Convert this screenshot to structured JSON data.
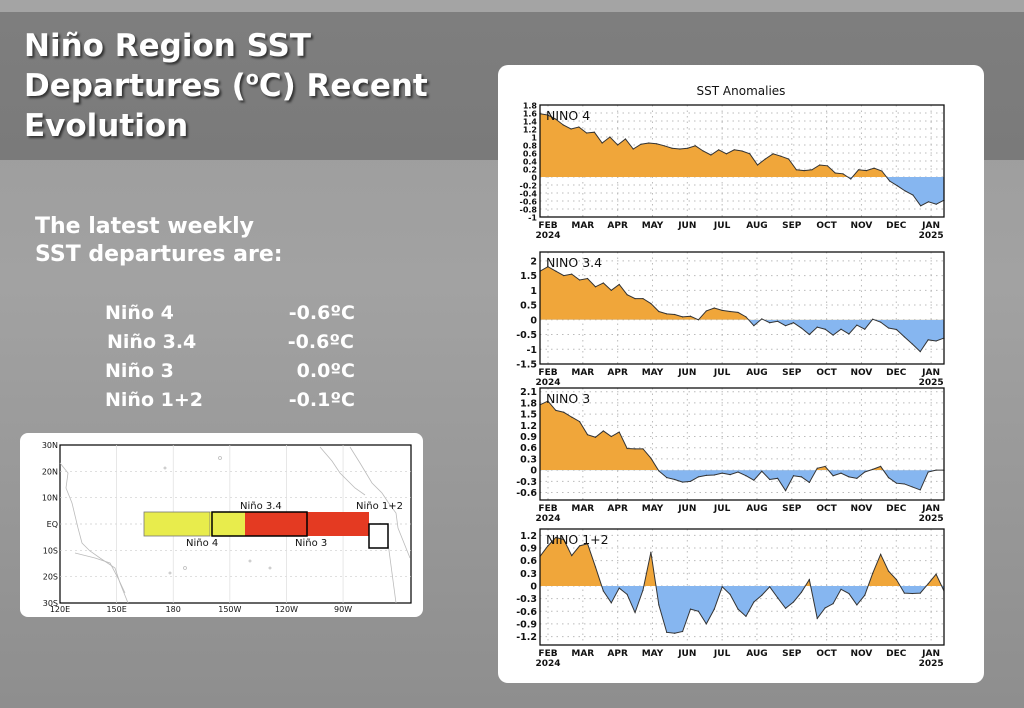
{
  "slide": {
    "title": "Niño Region SST Departures (oC) Recent Evolution",
    "title_lines": [
      "Niño Region SST",
      "Departures (",
      "o",
      "C) Recent",
      "Evolution"
    ],
    "subtitle_line1": "The latest weekly",
    "subtitle_line2": "SST departures are:",
    "latest": [
      {
        "region": "Niño 4",
        "value": "-0.6ºC"
      },
      {
        "region": "Niño 3.4",
        "value": "-0.6ºC"
      },
      {
        "region": "Niño 3",
        "value": "0.0ºC"
      },
      {
        "region": "Niño 1+2",
        "value": "-0.1ºC"
      }
    ]
  },
  "map": {
    "lat_labels": [
      "30N",
      "20N",
      "10N",
      "EQ",
      "10S",
      "20S",
      "30S"
    ],
    "lon_labels": [
      "120E",
      "150E",
      "180",
      "150W",
      "120W",
      "90W"
    ],
    "regions": [
      {
        "name": "Niño 4",
        "color": "#e8ec4c"
      },
      {
        "name": "Niño 3.4",
        "color": "#e8ec4c"
      },
      {
        "name": "Niño 3",
        "color": "#e43a22"
      },
      {
        "name": "Niño 1+2",
        "color": "#ffffff"
      }
    ]
  },
  "colors": {
    "positive": "#f0a63a",
    "negative": "#86b6f0"
  },
  "chart_data": [
    {
      "type": "area",
      "title": "SST Anomalies",
      "panel_label": "NINO  4",
      "xlabel": "",
      "ylabel": "",
      "x_tick_labels": [
        "FEB",
        "MAR",
        "APR",
        "MAY",
        "JUN",
        "JUL",
        "AUG",
        "SEP",
        "OCT",
        "NOV",
        "DEC",
        "JAN"
      ],
      "x_year_labels": [
        "2024",
        "2025"
      ],
      "ylim": [
        -1,
        1.8
      ],
      "y_ticks": [
        -1,
        -0.8,
        -0.6,
        -0.4,
        -0.2,
        0,
        0.2,
        0.4,
        0.6,
        0.8,
        1,
        1.2,
        1.4,
        1.6,
        1.8
      ],
      "y_tick_labels": [
        "-1",
        "-0.8",
        "-0.6",
        "-0.4",
        "-0.2",
        "0",
        "0.2",
        "0.4",
        "0.6",
        "0.8",
        "1",
        "1.2",
        "1.4",
        "1.6",
        "1.8"
      ],
      "grid": true,
      "values": [
        1.58,
        1.55,
        1.45,
        1.3,
        1.2,
        1.25,
        1.1,
        1.12,
        0.85,
        1.0,
        0.8,
        0.95,
        0.7,
        0.82,
        0.85,
        0.83,
        0.78,
        0.72,
        0.7,
        0.72,
        0.78,
        0.65,
        0.55,
        0.68,
        0.58,
        0.68,
        0.65,
        0.58,
        0.3,
        0.45,
        0.58,
        0.52,
        0.45,
        0.18,
        0.16,
        0.18,
        0.3,
        0.28,
        0.1,
        0.08,
        -0.05,
        0.18,
        0.16,
        0.22,
        0.15,
        -0.1,
        -0.22,
        -0.35,
        -0.45,
        -0.72,
        -0.62,
        -0.68,
        -0.58
      ]
    },
    {
      "type": "area",
      "panel_label": "NINO  3.4",
      "x_tick_labels": [
        "FEB",
        "MAR",
        "APR",
        "MAY",
        "JUN",
        "JUL",
        "AUG",
        "SEP",
        "OCT",
        "NOV",
        "DEC",
        "JAN"
      ],
      "x_year_labels": [
        "2024",
        "2025"
      ],
      "ylim": [
        -1.5,
        2.3
      ],
      "y_ticks": [
        -1.5,
        -1,
        -0.5,
        0,
        0.5,
        1,
        1.5,
        2
      ],
      "y_tick_labels": [
        "-1.5",
        "-1",
        "-0.5",
        "0",
        "0.5",
        "1",
        "1.5",
        "2"
      ],
      "grid": true,
      "values": [
        1.65,
        1.8,
        1.65,
        1.5,
        1.55,
        1.35,
        1.4,
        1.12,
        1.25,
        1.0,
        1.2,
        0.85,
        0.72,
        0.72,
        0.55,
        0.28,
        0.2,
        0.18,
        0.1,
        0.12,
        0.0,
        0.3,
        0.4,
        0.32,
        0.28,
        0.25,
        0.1,
        -0.2,
        0.03,
        -0.1,
        -0.05,
        -0.2,
        -0.1,
        -0.28,
        -0.5,
        -0.25,
        -0.32,
        -0.52,
        -0.32,
        -0.48,
        -0.18,
        -0.32,
        0.02,
        -0.08,
        -0.28,
        -0.33,
        -0.58,
        -0.82,
        -1.08,
        -0.68,
        -0.72,
        -0.62
      ]
    },
    {
      "type": "area",
      "panel_label": "NINO  3",
      "x_tick_labels": [
        "FEB",
        "MAR",
        "APR",
        "MAY",
        "JUN",
        "JUL",
        "AUG",
        "SEP",
        "OCT",
        "NOV",
        "DEC",
        "JAN"
      ],
      "x_year_labels": [
        "2024",
        "2025"
      ],
      "ylim": [
        -0.8,
        2.2
      ],
      "y_ticks": [
        -0.6,
        -0.3,
        0,
        0.3,
        0.6,
        0.9,
        1.2,
        1.5,
        1.8,
        2.1
      ],
      "y_tick_labels": [
        "-0.6",
        "-0.3",
        "0",
        "0.3",
        "0.6",
        "0.9",
        "1.2",
        "1.5",
        "1.8",
        "2.1"
      ],
      "grid": true,
      "values": [
        1.75,
        1.85,
        1.6,
        1.55,
        1.42,
        1.3,
        0.95,
        0.88,
        1.05,
        0.9,
        1.02,
        0.58,
        0.57,
        0.57,
        0.32,
        -0.02,
        -0.2,
        -0.25,
        -0.32,
        -0.3,
        -0.18,
        -0.14,
        -0.13,
        -0.08,
        -0.12,
        -0.05,
        -0.15,
        -0.27,
        -0.03,
        -0.25,
        -0.22,
        -0.55,
        -0.15,
        -0.18,
        -0.33,
        0.05,
        0.1,
        -0.15,
        -0.08,
        -0.18,
        -0.22,
        -0.05,
        0.02,
        0.1,
        -0.2,
        -0.35,
        -0.37,
        -0.45,
        -0.53,
        -0.05,
        0.0,
        0.0
      ]
    },
    {
      "type": "area",
      "panel_label": "NINO  1+2",
      "x_tick_labels": [
        "FEB",
        "MAR",
        "APR",
        "MAY",
        "JUN",
        "JUL",
        "AUG",
        "SEP",
        "OCT",
        "NOV",
        "DEC",
        "JAN"
      ],
      "x_year_labels": [
        "2024",
        "2025"
      ],
      "ylim": [
        -1.4,
        1.35
      ],
      "y_ticks": [
        -1.2,
        -0.9,
        -0.6,
        -0.3,
        0,
        0.3,
        0.6,
        0.9,
        1.2
      ],
      "y_tick_labels": [
        "-1.2",
        "-0.9",
        "-0.6",
        "-0.3",
        "0",
        "0.3",
        "0.6",
        "0.9",
        "1.2"
      ],
      "grid": true,
      "values": [
        0.7,
        0.95,
        1.15,
        1.1,
        0.72,
        0.95,
        1.0,
        0.45,
        -0.12,
        -0.4,
        -0.05,
        -0.2,
        -0.63,
        -0.1,
        0.8,
        -0.45,
        -1.1,
        -1.12,
        -1.08,
        -0.55,
        -0.6,
        -0.9,
        -0.55,
        -0.02,
        -0.2,
        -0.55,
        -0.72,
        -0.38,
        -0.22,
        -0.02,
        -0.28,
        -0.53,
        -0.38,
        -0.15,
        0.15,
        -0.77,
        -0.52,
        -0.42,
        -0.08,
        -0.18,
        -0.45,
        -0.22,
        0.3,
        0.75,
        0.35,
        0.15,
        -0.17,
        -0.18,
        -0.17,
        0.05,
        0.28,
        -0.12
      ]
    }
  ]
}
